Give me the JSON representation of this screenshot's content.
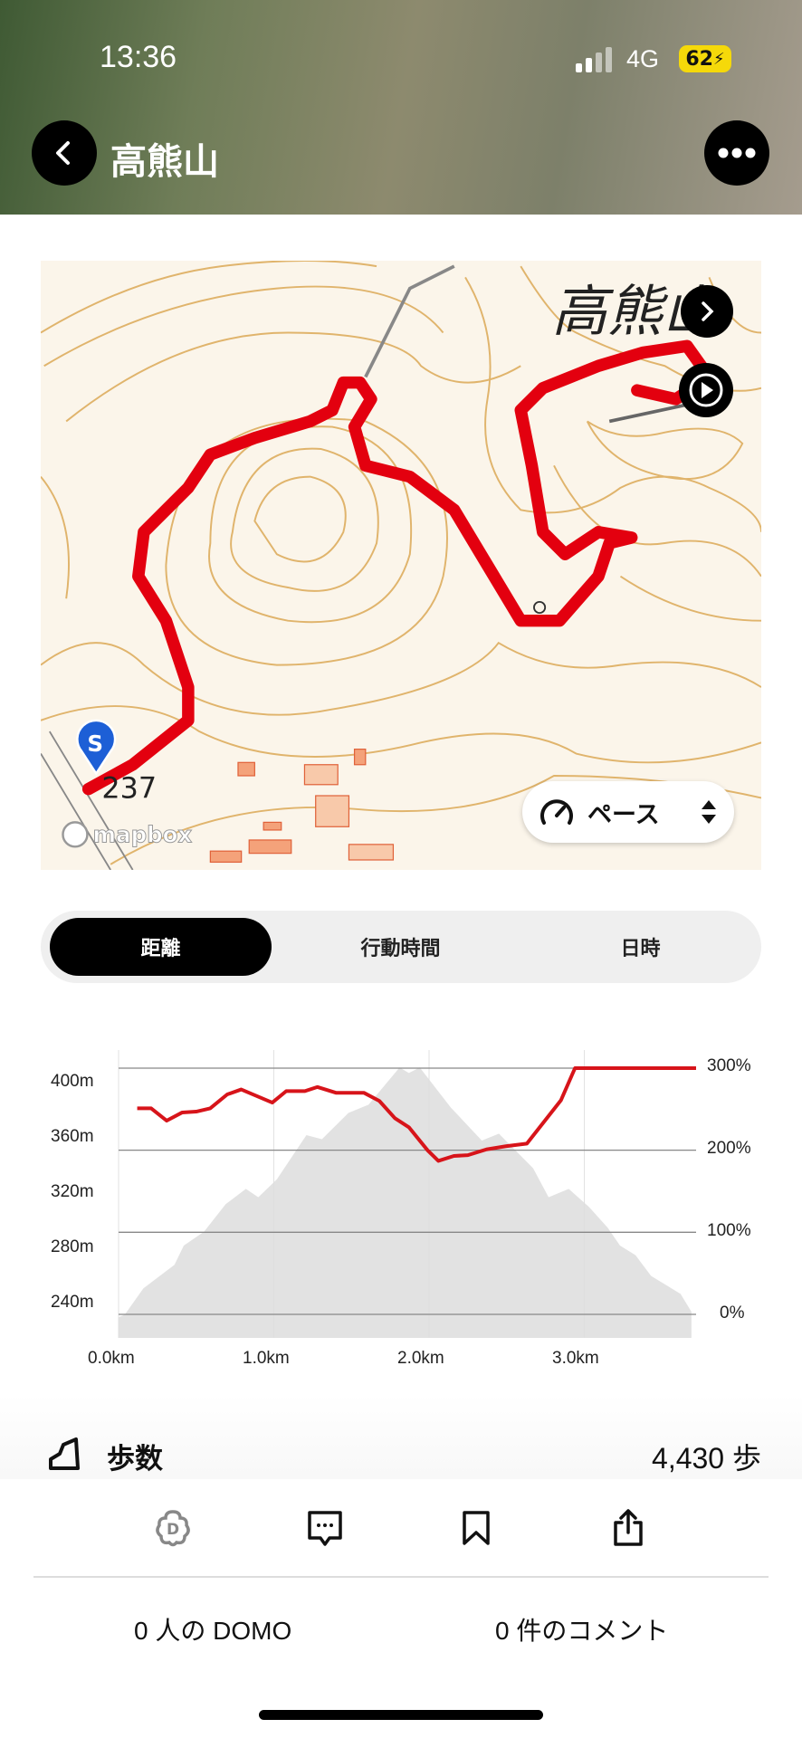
{
  "status_bar": {
    "time": "13:36",
    "network": "4G",
    "battery": "62"
  },
  "header": {
    "title": "高熊山",
    "back_icon": "chevron-left-icon",
    "more_icon": "ellipsis-icon"
  },
  "map": {
    "peak_label": "高熊山",
    "elevation_label": "237",
    "attribution": "mapbox",
    "start_marker": "S",
    "metric_selector": "ペース",
    "route_color": "#e3000f"
  },
  "tabs": [
    {
      "label": "距離",
      "selected": true
    },
    {
      "label": "行動時間",
      "selected": false
    },
    {
      "label": "日時",
      "selected": false
    }
  ],
  "chart_data": {
    "type": "area+line",
    "x_ticks": [
      "0.0km",
      "1.0km",
      "2.0km",
      "3.0km"
    ],
    "xlim": [
      0,
      3.72
    ],
    "y_left_ticks": [
      "400m",
      "360m",
      "320m",
      "280m",
      "240m"
    ],
    "y_right_ticks": [
      "300%",
      "200%",
      "100%",
      "0%"
    ],
    "elevation": {
      "unit": "m",
      "x": [
        0,
        0.04,
        0.16,
        0.36,
        0.42,
        0.55,
        0.69,
        0.82,
        0.9,
        1.02,
        1.21,
        1.31,
        1.48,
        1.61,
        1.81,
        1.87,
        1.94,
        2.14,
        2.34,
        2.45,
        2.67,
        2.77,
        2.9,
        3.03,
        3.15,
        3.23,
        3.33,
        3.43,
        3.62,
        3.69
      ],
      "y": [
        230,
        232,
        251,
        268,
        282,
        292,
        312,
        323,
        317,
        330,
        362,
        359,
        378,
        384,
        411,
        407,
        411,
        382,
        358,
        363,
        338,
        317,
        323,
        310,
        295,
        282,
        275,
        260,
        247,
        234
      ],
      "color": "#dddddd"
    },
    "pace": {
      "unit": "%",
      "x": [
        0.12,
        0.21,
        0.31,
        0.41,
        0.5,
        0.59,
        0.7,
        0.79,
        0.99,
        1.08,
        1.2,
        1.28,
        1.4,
        1.58,
        1.68,
        1.78,
        1.87,
        1.99,
        2.06,
        2.16,
        2.25,
        2.37,
        2.5,
        2.63,
        2.85,
        2.94,
        3.72
      ],
      "y": [
        251,
        251,
        236,
        246,
        247,
        251,
        268,
        274,
        258,
        272,
        272,
        277,
        270,
        270,
        260,
        239,
        228,
        200,
        187,
        193,
        194,
        201,
        205,
        208,
        261,
        300,
        300
      ],
      "color": "#d7141a"
    }
  },
  "stats": {
    "steps_label": "歩数",
    "steps_value": "4,430 歩"
  },
  "actions": {
    "domo_icon": "domo-flower-icon",
    "comment_icon": "comment-icon",
    "bookmark_icon": "bookmark-icon",
    "share_icon": "share-icon",
    "domo_count": "0 人の DOMO",
    "comment_count": "0 件のコメント"
  }
}
